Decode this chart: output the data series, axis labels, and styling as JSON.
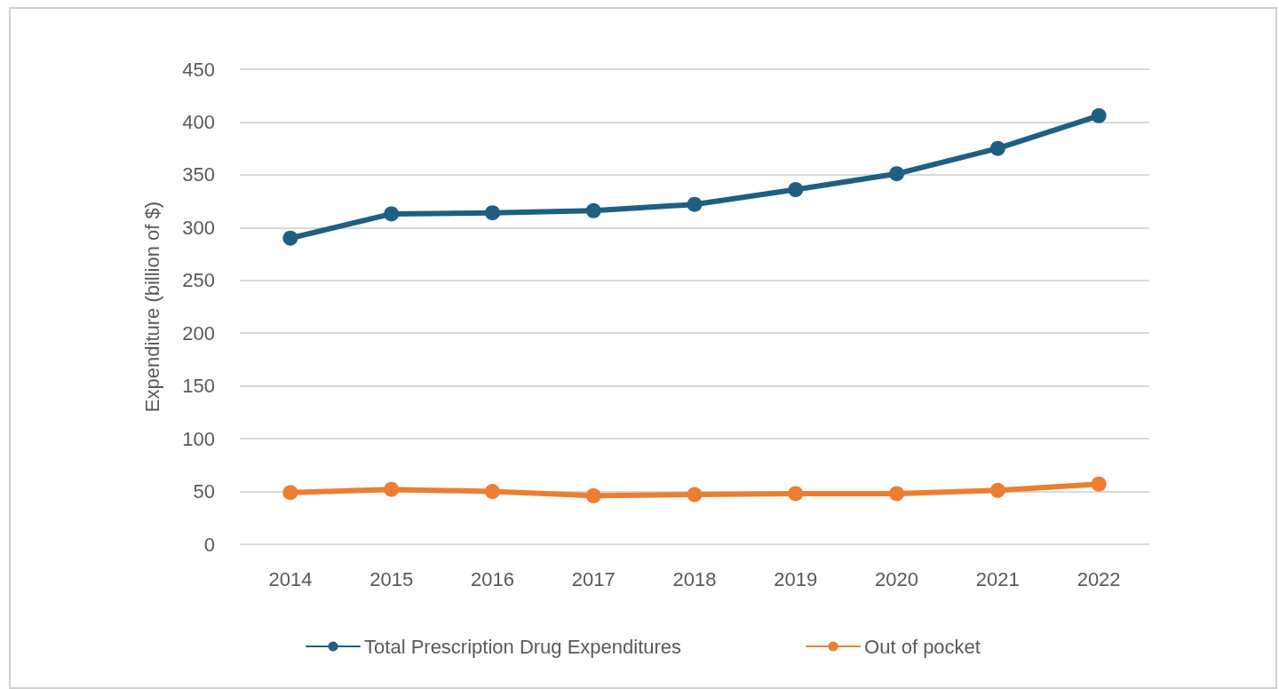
{
  "chart_data": {
    "type": "line",
    "ylabel": "Expenditure (billion of $)",
    "categories": [
      "2014",
      "2015",
      "2016",
      "2017",
      "2018",
      "2019",
      "2020",
      "2021",
      "2022"
    ],
    "series": [
      {
        "name": "Total Prescription Drug Expenditures",
        "color": "#1f5f82",
        "values": [
          290,
          313,
          314,
          316,
          322,
          336,
          351,
          375,
          406
        ]
      },
      {
        "name": "Out of pocket",
        "color": "#ed7d31",
        "values": [
          49,
          52,
          50,
          46,
          47,
          48,
          48,
          51,
          57
        ]
      }
    ],
    "ylim": [
      0,
      450
    ],
    "yticks": [
      0,
      50,
      100,
      150,
      200,
      250,
      300,
      350,
      400,
      450
    ],
    "grid": "y",
    "legend": "bottom",
    "marker": "circle",
    "line_style": "solid"
  }
}
